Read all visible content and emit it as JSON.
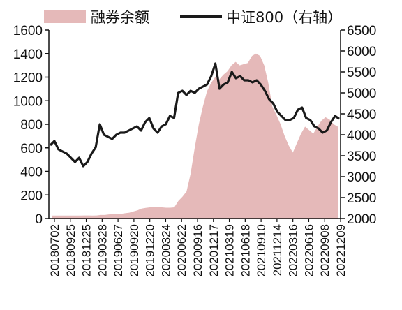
{
  "chart_data": {
    "type": "area+line",
    "title": "",
    "legend_position": "top",
    "grid": false,
    "colors": {
      "area": "#e5b9b9",
      "line": "#1a1a1a",
      "axis": "#111111"
    },
    "left_axis": {
      "ylim": [
        0,
        1600
      ],
      "ticks": [
        "0",
        "200",
        "400",
        "600",
        "800",
        "1000",
        "1200",
        "1400",
        "1600"
      ]
    },
    "right_axis": {
      "ylim": [
        2000,
        6500
      ],
      "ticks": [
        "2000",
        "2500",
        "3000",
        "3500",
        "4000",
        "4500",
        "5000",
        "5500",
        "6000",
        "6500"
      ]
    },
    "x_tick_labels": [
      "20180702",
      "20180925",
      "20181225",
      "20190328",
      "20190627",
      "20190920",
      "20191220",
      "20200324",
      "20200622",
      "20200916",
      "20201217",
      "20210319",
      "20210618",
      "20210910",
      "20211214",
      "20220316",
      "20220616",
      "20220908",
      "20221209"
    ],
    "series": [
      {
        "name": "融券余额",
        "kind": "area",
        "axis": "left",
        "values": [
          25,
          25,
          25,
          25,
          25,
          25,
          25,
          25,
          26,
          26,
          25,
          26,
          30,
          30,
          35,
          38,
          40,
          40,
          45,
          50,
          60,
          70,
          85,
          90,
          95,
          95,
          95,
          95,
          92,
          92,
          95,
          150,
          185,
          230,
          380,
          600,
          800,
          950,
          1080,
          1150,
          1200,
          1180,
          1220,
          1250,
          1300,
          1330,
          1300,
          1310,
          1320,
          1380,
          1400,
          1380,
          1300,
          1150,
          950,
          880,
          800,
          700,
          620,
          560,
          640,
          720,
          780,
          750,
          720,
          780,
          830,
          860,
          840,
          800,
          780
        ]
      },
      {
        "name": "中证800（右轴）",
        "kind": "line",
        "axis": "right",
        "values": [
          3750,
          3850,
          3650,
          3600,
          3550,
          3450,
          3350,
          3450,
          3250,
          3350,
          3550,
          3700,
          4250,
          4000,
          3950,
          3900,
          4000,
          4050,
          4050,
          4100,
          4150,
          4200,
          4100,
          4300,
          4400,
          4150,
          4050,
          4200,
          4250,
          4450,
          4400,
          5000,
          5050,
          4950,
          5050,
          5000,
          5100,
          5150,
          5200,
          5400,
          5700,
          5100,
          5200,
          5250,
          5500,
          5350,
          5400,
          5300,
          5300,
          5250,
          5300,
          5200,
          5050,
          4850,
          4750,
          4550,
          4450,
          4350,
          4350,
          4400,
          4600,
          4650,
          4400,
          4350,
          4200,
          4150,
          4050,
          4100,
          4300,
          4450,
          4380
        ]
      }
    ]
  }
}
